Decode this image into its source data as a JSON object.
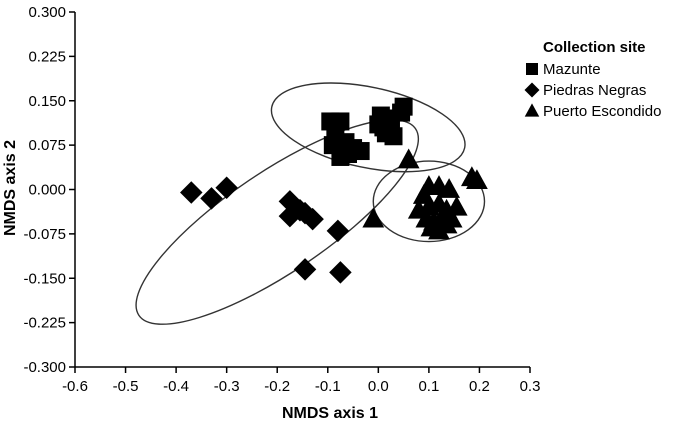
{
  "chart_data": {
    "type": "scatter",
    "xlabel": "NMDS axis 1",
    "ylabel": "NMDS axis 2",
    "xlim": [
      -0.6,
      0.3
    ],
    "ylim": [
      -0.3,
      0.3
    ],
    "x_ticks": [
      "-0.6",
      "-0.5",
      "-0.4",
      "-0.3",
      "-0.2",
      "-0.1",
      "0.0",
      "0.1",
      "0.2",
      "0.3"
    ],
    "y_ticks": [
      "0.300",
      "0.225",
      "0.150",
      "0.075",
      "0.000",
      "-0.075",
      "-0.150",
      "-0.225",
      "-0.300"
    ],
    "grid": false,
    "legend": {
      "title": "Collection site",
      "placement": "top-right",
      "entries": [
        {
          "label": "Mazunte",
          "marker": "square"
        },
        {
          "label": "Piedras Negras",
          "marker": "diamond"
        },
        {
          "label": "Puerto Escondido",
          "marker": "triangle"
        }
      ]
    },
    "series": [
      {
        "name": "Mazunte",
        "marker": "square",
        "points": [
          [
            -0.095,
            0.115
          ],
          [
            -0.085,
            0.095
          ],
          [
            -0.075,
            0.115
          ],
          [
            -0.09,
            0.075
          ],
          [
            -0.07,
            0.06
          ],
          [
            -0.065,
            0.08
          ],
          [
            -0.05,
            0.07
          ],
          [
            -0.035,
            0.065
          ],
          [
            -0.075,
            0.055
          ],
          [
            -0.06,
            0.06
          ],
          [
            0.0,
            0.11
          ],
          [
            0.005,
            0.125
          ],
          [
            0.015,
            0.095
          ],
          [
            0.025,
            0.12
          ],
          [
            0.03,
            0.09
          ],
          [
            0.045,
            0.13
          ],
          [
            0.05,
            0.14
          ],
          [
            0.01,
            0.105
          ]
        ]
      },
      {
        "name": "Piedras Negras",
        "marker": "diamond",
        "points": [
          [
            -0.37,
            -0.005
          ],
          [
            -0.33,
            -0.015
          ],
          [
            -0.3,
            0.003
          ],
          [
            -0.175,
            -0.02
          ],
          [
            -0.175,
            -0.045
          ],
          [
            -0.155,
            -0.035
          ],
          [
            -0.145,
            -0.04
          ],
          [
            -0.13,
            -0.05
          ],
          [
            -0.08,
            -0.07
          ],
          [
            -0.145,
            -0.135
          ],
          [
            -0.075,
            -0.14
          ]
        ]
      },
      {
        "name": "Puerto Escondido",
        "marker": "triangle",
        "points": [
          [
            0.06,
            0.05
          ],
          [
            -0.01,
            -0.05
          ],
          [
            0.09,
            -0.01
          ],
          [
            0.1,
            0.005
          ],
          [
            0.12,
            0.005
          ],
          [
            0.14,
            0.0
          ],
          [
            0.08,
            -0.035
          ],
          [
            0.1,
            -0.03
          ],
          [
            0.12,
            -0.025
          ],
          [
            0.135,
            -0.035
          ],
          [
            0.155,
            -0.03
          ],
          [
            0.095,
            -0.05
          ],
          [
            0.11,
            -0.055
          ],
          [
            0.125,
            -0.05
          ],
          [
            0.145,
            -0.05
          ],
          [
            0.105,
            -0.065
          ],
          [
            0.12,
            -0.07
          ],
          [
            0.135,
            -0.06
          ],
          [
            0.185,
            0.02
          ],
          [
            0.195,
            0.015
          ]
        ]
      }
    ],
    "ellipses": [
      {
        "group": "Mazunte",
        "cx": -0.02,
        "cy": 0.105,
        "rx": 0.195,
        "ry": 0.068,
        "angle_deg": 12
      },
      {
        "group": "Piedras Negras",
        "cx": -0.2,
        "cy": -0.055,
        "rx": 0.33,
        "ry": 0.085,
        "angle_deg": -34
      },
      {
        "group": "Puerto Escondido",
        "cx": 0.1,
        "cy": -0.02,
        "rx": 0.11,
        "ry": 0.068,
        "angle_deg": 0
      }
    ]
  }
}
